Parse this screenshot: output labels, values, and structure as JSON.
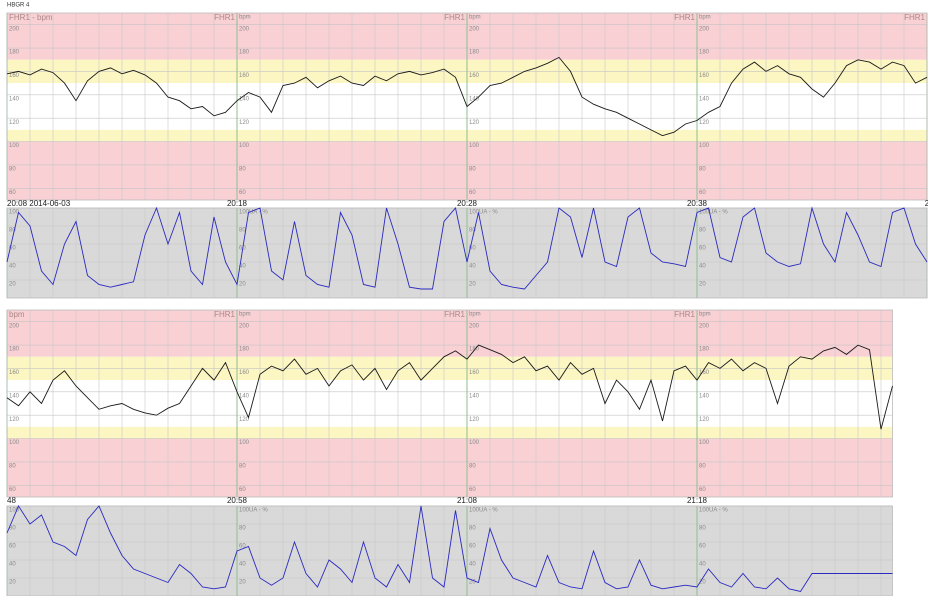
{
  "header": "HBGR 4",
  "chart_data": [
    {
      "type": "fhr",
      "title": "FHR1 - bpm",
      "section_label": "FHR1",
      "unit": "bpm",
      "color": "#1a1a1a",
      "xlim": [
        0,
        40
      ],
      "ylim": [
        50,
        210
      ],
      "yticks": [
        60,
        80,
        100,
        120,
        140,
        160,
        180,
        200
      ],
      "xticks": [
        {
          "value": 0,
          "label": "20:08 2014-06-03"
        },
        {
          "value": 10,
          "label": "20:18"
        },
        {
          "value": 20,
          "label": "20:28"
        },
        {
          "value": 30,
          "label": "20:38"
        },
        {
          "value": 40,
          "label": "2"
        }
      ],
      "bands": [
        {
          "from": 170,
          "to": 210,
          "color": "#f9d0d4"
        },
        {
          "from": 150,
          "to": 170,
          "color": "#fbf6c2"
        },
        {
          "from": 110,
          "to": 150,
          "color": "#ffffff"
        },
        {
          "from": 100,
          "to": 110,
          "color": "#fbf6c2"
        },
        {
          "from": 50,
          "to": 100,
          "color": "#f9d0d4"
        }
      ],
      "x": [
        0,
        0.5,
        1,
        1.5,
        2,
        2.5,
        3,
        3.5,
        4,
        4.5,
        5,
        5.5,
        6,
        6.5,
        7,
        7.5,
        8,
        8.5,
        9,
        9.5,
        10,
        10.5,
        11,
        11.5,
        12,
        12.5,
        13,
        13.5,
        14,
        14.5,
        15,
        15.5,
        16,
        16.5,
        17,
        17.5,
        18,
        18.5,
        19,
        19.5,
        20,
        20.5,
        21,
        21.5,
        22,
        22.5,
        23,
        23.5,
        24,
        24.5,
        25,
        25.5,
        26,
        26.5,
        27,
        27.5,
        28,
        28.5,
        29,
        29.5,
        30,
        30.5,
        31,
        31.5,
        32,
        32.5,
        33,
        33.5,
        34,
        34.5,
        35,
        35.5,
        36,
        36.5,
        37,
        37.5,
        38,
        38.5,
        39,
        39.5,
        40
      ],
      "values": [
        158,
        160,
        157,
        162,
        159,
        150,
        135,
        152,
        160,
        163,
        158,
        161,
        157,
        150,
        138,
        135,
        128,
        130,
        122,
        125,
        135,
        142,
        138,
        125,
        148,
        150,
        155,
        146,
        152,
        156,
        150,
        148,
        156,
        152,
        158,
        160,
        157,
        159,
        162,
        155,
        130,
        138,
        148,
        150,
        155,
        160,
        163,
        167,
        172,
        160,
        138,
        132,
        128,
        125,
        120,
        115,
        110,
        105,
        108,
        115,
        118,
        125,
        130,
        150,
        162,
        168,
        160,
        165,
        158,
        155,
        145,
        138,
        150,
        165,
        170,
        168,
        162,
        168,
        165,
        150,
        155
      ]
    },
    {
      "type": "uc",
      "section_label": "UA - %",
      "color": "#2a2ac0",
      "background": "#d9d9d9",
      "xlim": [
        0,
        40
      ],
      "ylim": [
        0,
        100
      ],
      "yticks": [
        20,
        40,
        60,
        80,
        100
      ],
      "x": [
        0,
        0.5,
        1,
        1.5,
        2,
        2.5,
        3,
        3.5,
        4,
        4.5,
        5,
        5.5,
        6,
        6.5,
        7,
        7.5,
        8,
        8.5,
        9,
        9.5,
        10,
        10.5,
        11,
        11.5,
        12,
        12.5,
        13,
        13.5,
        14,
        14.5,
        15,
        15.5,
        16,
        16.5,
        17,
        17.5,
        18,
        18.5,
        19,
        19.5,
        20,
        20.5,
        21,
        21.5,
        22,
        22.5,
        23,
        23.5,
        24,
        24.5,
        25,
        25.5,
        26,
        26.5,
        27,
        27.5,
        28,
        28.5,
        29,
        29.5,
        30,
        30.5,
        31,
        31.5,
        32,
        32.5,
        33,
        33.5,
        34,
        34.5,
        35,
        35.5,
        36,
        36.5,
        37,
        37.5,
        38,
        38.5,
        39,
        39.5,
        40
      ],
      "values": [
        40,
        95,
        80,
        30,
        15,
        60,
        85,
        25,
        15,
        12,
        15,
        18,
        70,
        100,
        60,
        95,
        30,
        15,
        90,
        40,
        15,
        95,
        100,
        30,
        20,
        85,
        25,
        15,
        12,
        95,
        70,
        15,
        12,
        100,
        60,
        12,
        10,
        10,
        85,
        100,
        40,
        95,
        30,
        15,
        12,
        10,
        25,
        40,
        100,
        90,
        45,
        100,
        40,
        35,
        90,
        100,
        50,
        40,
        38,
        35,
        95,
        100,
        45,
        40,
        90,
        100,
        50,
        40,
        35,
        38,
        100,
        60,
        40,
        95,
        70,
        40,
        35,
        95,
        100,
        60,
        40
      ]
    },
    {
      "type": "fhr",
      "title": "bpm",
      "section_label": "FHR1",
      "unit": "bpm",
      "color": "#1a1a1a",
      "xlim": [
        0,
        38.5
      ],
      "ylim": [
        50,
        210
      ],
      "yticks": [
        60,
        80,
        100,
        120,
        140,
        160,
        180,
        200
      ],
      "xticks": [
        {
          "value": 0,
          "label": "48"
        },
        {
          "value": 10,
          "label": "20:58"
        },
        {
          "value": 20,
          "label": "21:08"
        },
        {
          "value": 30,
          "label": "21:18"
        }
      ],
      "bands": [
        {
          "from": 170,
          "to": 210,
          "color": "#f9d0d4"
        },
        {
          "from": 150,
          "to": 170,
          "color": "#fbf6c2"
        },
        {
          "from": 110,
          "to": 150,
          "color": "#ffffff"
        },
        {
          "from": 100,
          "to": 110,
          "color": "#fbf6c2"
        },
        {
          "from": 50,
          "to": 100,
          "color": "#f9d0d4"
        }
      ],
      "x": [
        0,
        0.5,
        1,
        1.5,
        2,
        2.5,
        3,
        3.5,
        4,
        4.5,
        5,
        5.5,
        6,
        6.5,
        7,
        7.5,
        8,
        8.5,
        9,
        9.5,
        10,
        10.5,
        11,
        11.5,
        12,
        12.5,
        13,
        13.5,
        14,
        14.5,
        15,
        15.5,
        16,
        16.5,
        17,
        17.5,
        18,
        18.5,
        19,
        19.5,
        20,
        20.5,
        21,
        21.5,
        22,
        22.5,
        23,
        23.5,
        24,
        24.5,
        25,
        25.5,
        26,
        26.5,
        27,
        27.5,
        28,
        28.5,
        29,
        29.5,
        30,
        30.5,
        31,
        31.5,
        32,
        32.5,
        33,
        33.5,
        34,
        34.5,
        35,
        35.5,
        36,
        36.5,
        37,
        37.5,
        38,
        38.5
      ],
      "values": [
        135,
        128,
        140,
        130,
        150,
        158,
        145,
        135,
        125,
        128,
        130,
        125,
        122,
        120,
        126,
        130,
        145,
        160,
        150,
        165,
        140,
        118,
        155,
        162,
        158,
        168,
        155,
        160,
        145,
        158,
        163,
        150,
        160,
        142,
        158,
        165,
        150,
        160,
        170,
        175,
        168,
        180,
        176,
        172,
        165,
        170,
        158,
        162,
        150,
        165,
        155,
        160,
        130,
        150,
        140,
        125,
        150,
        115,
        158,
        162,
        150,
        165,
        160,
        168,
        158,
        165,
        160,
        130,
        162,
        170,
        168,
        175,
        178,
        172,
        180,
        176,
        108,
        145
      ]
    },
    {
      "type": "uc",
      "section_label": "UA - %",
      "color": "#2a2ac0",
      "background": "#d9d9d9",
      "xlim": [
        0,
        38.5
      ],
      "ylim": [
        0,
        100
      ],
      "yticks": [
        20,
        40,
        60,
        80,
        100
      ],
      "x": [
        0,
        0.5,
        1,
        1.5,
        2,
        2.5,
        3,
        3.5,
        4,
        4.5,
        5,
        5.5,
        6,
        6.5,
        7,
        7.5,
        8,
        8.5,
        9,
        9.5,
        10,
        10.5,
        11,
        11.5,
        12,
        12.5,
        13,
        13.5,
        14,
        14.5,
        15,
        15.5,
        16,
        16.5,
        17,
        17.5,
        18,
        18.5,
        19,
        19.5,
        20,
        20.5,
        21,
        21.5,
        22,
        22.5,
        23,
        23.5,
        24,
        24.5,
        25,
        25.5,
        26,
        26.5,
        27,
        27.5,
        28,
        28.5,
        29,
        29.5,
        30,
        30.5,
        31,
        31.5,
        32,
        32.5,
        33,
        33.5,
        34,
        34.5,
        35,
        35.5,
        36,
        36.5,
        37,
        37.5,
        38,
        38.5
      ],
      "values": [
        70,
        100,
        80,
        90,
        60,
        55,
        45,
        85,
        100,
        70,
        45,
        30,
        25,
        20,
        15,
        35,
        25,
        10,
        8,
        10,
        50,
        55,
        20,
        12,
        20,
        60,
        25,
        10,
        40,
        30,
        15,
        60,
        20,
        10,
        35,
        15,
        100,
        20,
        10,
        95,
        20,
        15,
        75,
        40,
        20,
        15,
        10,
        45,
        15,
        10,
        8,
        50,
        15,
        8,
        10,
        40,
        12,
        8,
        10,
        12,
        10,
        30,
        15,
        10,
        25,
        10,
        8,
        20,
        8,
        5,
        25,
        25,
        25,
        25,
        25,
        25,
        25,
        25
      ]
    }
  ]
}
